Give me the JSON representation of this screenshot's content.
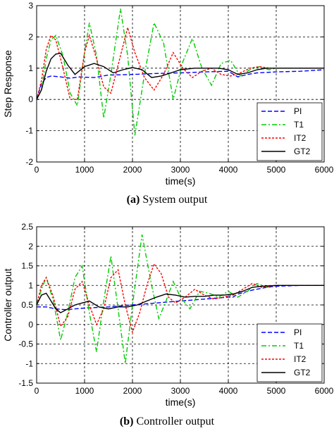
{
  "figure": {
    "captions": [
      {
        "label": "(a)",
        "text": "System output"
      },
      {
        "label": "(b)",
        "text": "Controller output"
      }
    ]
  },
  "chart_data": [
    {
      "type": "line",
      "title": "",
      "xlabel": "time(s)",
      "ylabel": "Step Response",
      "xlim": [
        0,
        6000
      ],
      "ylim": [
        -2,
        3
      ],
      "xticks": [
        0,
        1000,
        2000,
        3000,
        4000,
        5000,
        6000
      ],
      "yticks": [
        -2,
        -1,
        0,
        1,
        2,
        3
      ],
      "grid": true,
      "legend_position": "bottom-right",
      "series": [
        {
          "name": "PI",
          "color": "#0000ff",
          "style": "dashed",
          "x": [
            0,
            100,
            200,
            300,
            500,
            700,
            900,
            1200,
            1500,
            2000,
            2500,
            3000,
            3500,
            4000,
            4200,
            4400,
            4600,
            5000,
            5500,
            6000
          ],
          "y": [
            0,
            0.5,
            0.7,
            0.75,
            0.72,
            0.68,
            0.72,
            0.7,
            0.78,
            0.8,
            0.83,
            0.85,
            0.88,
            0.9,
            0.72,
            0.8,
            0.85,
            0.88,
            0.9,
            0.95
          ]
        },
        {
          "name": "T1",
          "color": "#00cc00",
          "style": "dashdot",
          "x": [
            0,
            100,
            200,
            300,
            400,
            550,
            700,
            850,
            1000,
            1100,
            1250,
            1400,
            1550,
            1750,
            1900,
            2050,
            2250,
            2450,
            2650,
            2850,
            3050,
            3250,
            3450,
            3650,
            3850,
            4050,
            4250,
            4450,
            4650,
            4850,
            5000,
            6000
          ],
          "y": [
            0,
            0.3,
            1.3,
            1.9,
            2.05,
            1.4,
            0.2,
            -0.2,
            1.5,
            2.45,
            1.4,
            -0.6,
            0.8,
            2.9,
            1.4,
            -1.15,
            0.8,
            2.45,
            1.8,
            0.0,
            1.2,
            1.95,
            1.0,
            0.45,
            1.15,
            1.25,
            0.75,
            0.95,
            1.05,
            0.95,
            1.0,
            1.0
          ]
        },
        {
          "name": "IT2",
          "color": "#ff0000",
          "style": "dotted",
          "x": [
            0,
            100,
            200,
            300,
            400,
            550,
            700,
            850,
            1000,
            1100,
            1250,
            1400,
            1550,
            1750,
            1900,
            2050,
            2250,
            2450,
            2650,
            2850,
            3050,
            3250,
            3450,
            3650,
            3850,
            4050,
            4250,
            4450,
            4650,
            4850,
            5000,
            6000
          ],
          "y": [
            0,
            0.6,
            1.6,
            2.05,
            1.9,
            1.0,
            0.0,
            0.0,
            1.5,
            2.05,
            1.3,
            0.4,
            0.2,
            1.4,
            2.3,
            1.5,
            0.7,
            0.3,
            0.8,
            1.5,
            1.0,
            0.7,
            0.9,
            1.0,
            0.8,
            0.75,
            0.85,
            1.0,
            1.05,
            1.0,
            1.0,
            1.0
          ]
        },
        {
          "name": "GT2",
          "color": "#000000",
          "style": "solid",
          "x": [
            0,
            100,
            200,
            300,
            400,
            500,
            650,
            800,
            1000,
            1200,
            1400,
            1600,
            1800,
            2000,
            2200,
            2400,
            2600,
            2800,
            3000,
            3300,
            3600,
            3800,
            4000,
            4200,
            4400,
            4600,
            4800,
            5000,
            6000
          ],
          "y": [
            0,
            0.3,
            0.9,
            1.3,
            1.45,
            1.48,
            1.1,
            0.8,
            1.05,
            1.15,
            1.05,
            0.85,
            0.95,
            1.02,
            0.95,
            0.7,
            0.75,
            0.85,
            0.95,
            1.0,
            1.0,
            1.0,
            0.95,
            0.8,
            0.85,
            0.95,
            1.0,
            1.0,
            1.0
          ]
        }
      ]
    },
    {
      "type": "line",
      "title": "",
      "xlabel": "time(s)",
      "ylabel": "Controller output",
      "xlim": [
        0,
        6000
      ],
      "ylim": [
        -1.5,
        2.5
      ],
      "xticks": [
        0,
        1000,
        2000,
        3000,
        4000,
        5000,
        6000
      ],
      "yticks": [
        -1.5,
        -1,
        -0.5,
        0,
        0.5,
        1,
        1.5,
        2,
        2.5
      ],
      "grid": true,
      "legend_position": "bottom-right",
      "series": [
        {
          "name": "PI",
          "color": "#0000ff",
          "style": "dashed",
          "x": [
            0,
            200,
            400,
            600,
            800,
            1000,
            1500,
            2000,
            2500,
            3000,
            3500,
            4000,
            4100,
            4200,
            4500,
            4800,
            5000,
            5500,
            6000
          ],
          "y": [
            0.45,
            0.45,
            0.4,
            0.38,
            0.4,
            0.42,
            0.45,
            0.5,
            0.55,
            0.6,
            0.65,
            0.7,
            0.7,
            0.78,
            0.88,
            0.95,
            0.98,
            1.0,
            1.0
          ]
        },
        {
          "name": "T1",
          "color": "#00cc00",
          "style": "dashdot",
          "x": [
            0,
            100,
            200,
            350,
            500,
            650,
            800,
            950,
            1100,
            1250,
            1400,
            1550,
            1700,
            1850,
            2000,
            2200,
            2400,
            2550,
            2700,
            2850,
            3000,
            3200,
            3400,
            3600,
            3800,
            4000,
            4200,
            4400,
            4600,
            4800,
            5000,
            6000
          ],
          "y": [
            0.5,
            0.9,
            1.2,
            0.6,
            -0.4,
            0.3,
            1.2,
            1.5,
            0.3,
            -0.7,
            0.6,
            1.75,
            0.4,
            -1.0,
            0.5,
            2.3,
            1.0,
            0.15,
            0.6,
            1.1,
            0.7,
            0.4,
            0.85,
            0.8,
            0.7,
            0.85,
            0.7,
            0.85,
            1.05,
            0.95,
            1.0,
            1.0
          ]
        },
        {
          "name": "IT2",
          "color": "#ff0000",
          "style": "dotted",
          "x": [
            0,
            100,
            200,
            350,
            500,
            650,
            800,
            950,
            1100,
            1250,
            1400,
            1550,
            1700,
            1850,
            2000,
            2150,
            2300,
            2450,
            2600,
            2750,
            2900,
            3100,
            3300,
            3500,
            3700,
            3900,
            4100,
            4300,
            4500,
            4700,
            5000,
            6000
          ],
          "y": [
            0.5,
            1.0,
            1.2,
            0.7,
            -0.05,
            0.2,
            0.9,
            1.1,
            0.5,
            0.0,
            0.4,
            1.2,
            1.4,
            0.5,
            -0.2,
            0.3,
            1.0,
            1.55,
            1.3,
            0.7,
            0.55,
            0.7,
            0.9,
            0.75,
            0.65,
            0.7,
            0.75,
            0.9,
            1.05,
            0.95,
            1.0,
            1.0
          ]
        },
        {
          "name": "GT2",
          "color": "#000000",
          "style": "solid",
          "x": [
            0,
            100,
            200,
            300,
            400,
            500,
            650,
            800,
            950,
            1100,
            1300,
            1500,
            1700,
            1900,
            2100,
            2300,
            2500,
            2700,
            2900,
            3100,
            3300,
            3500,
            3700,
            3900,
            4100,
            4300,
            4500,
            4700,
            5000,
            6000
          ],
          "y": [
            0.5,
            0.75,
            0.8,
            0.6,
            0.4,
            0.3,
            0.4,
            0.5,
            0.55,
            0.6,
            0.45,
            0.4,
            0.45,
            0.45,
            0.5,
            0.6,
            0.7,
            0.78,
            0.75,
            0.7,
            0.72,
            0.72,
            0.75,
            0.75,
            0.78,
            0.85,
            0.95,
            0.98,
            1.0,
            1.0
          ]
        }
      ]
    }
  ]
}
